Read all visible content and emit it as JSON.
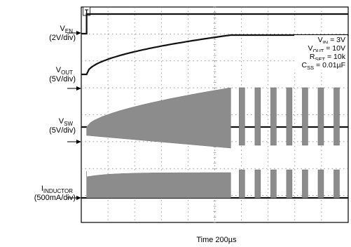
{
  "chart_data": {
    "type": "line",
    "title": "",
    "xlabel": "Time 200µs",
    "time_per_div": "200µs",
    "grid": true,
    "divisions": {
      "x": 10,
      "y": 8
    },
    "channels": [
      {
        "id": "ven",
        "name": "V_EN",
        "label_main": "V",
        "label_sub": "EN",
        "scale": "(2V/div)",
        "low_div": 0.0,
        "high_div": 1.8,
        "step_at_div": 0.2
      },
      {
        "id": "vout",
        "name": "V_OUT",
        "label_main": "V",
        "label_sub": "OUT",
        "scale": "(5V/div)",
        "initial_div": 0.0,
        "final_div": 2.0,
        "start_at_div": 0.2,
        "settle_at_div": 5.6
      },
      {
        "id": "vsw",
        "name": "V_SW",
        "label_main": "V",
        "label_sub": "SW",
        "scale": "(5V/div)",
        "baseline_div": 0.0,
        "switching_start_div": 0.2,
        "continuous_until_div": 5.6,
        "burst_count": 7
      },
      {
        "id": "iind",
        "name": "I_INDUCTOR",
        "label_main": "I",
        "label_sub": "INDUCTOR",
        "scale": "(500mA/div)",
        "baseline_div": 0.0,
        "ripple_start_div": 0.2,
        "continuous_until_div": 5.6,
        "burst_count": 7
      }
    ],
    "annotations": [
      {
        "main": "V",
        "sub": "IN",
        "value": " = 3V"
      },
      {
        "main": "V",
        "sub": "OUT",
        "value": " = 10V"
      },
      {
        "main": "R",
        "sub": "SET",
        "value": " = 10k"
      },
      {
        "main": "C",
        "sub": "SS",
        "value": " = 0.01µF"
      }
    ],
    "trigger_marker": "T"
  }
}
